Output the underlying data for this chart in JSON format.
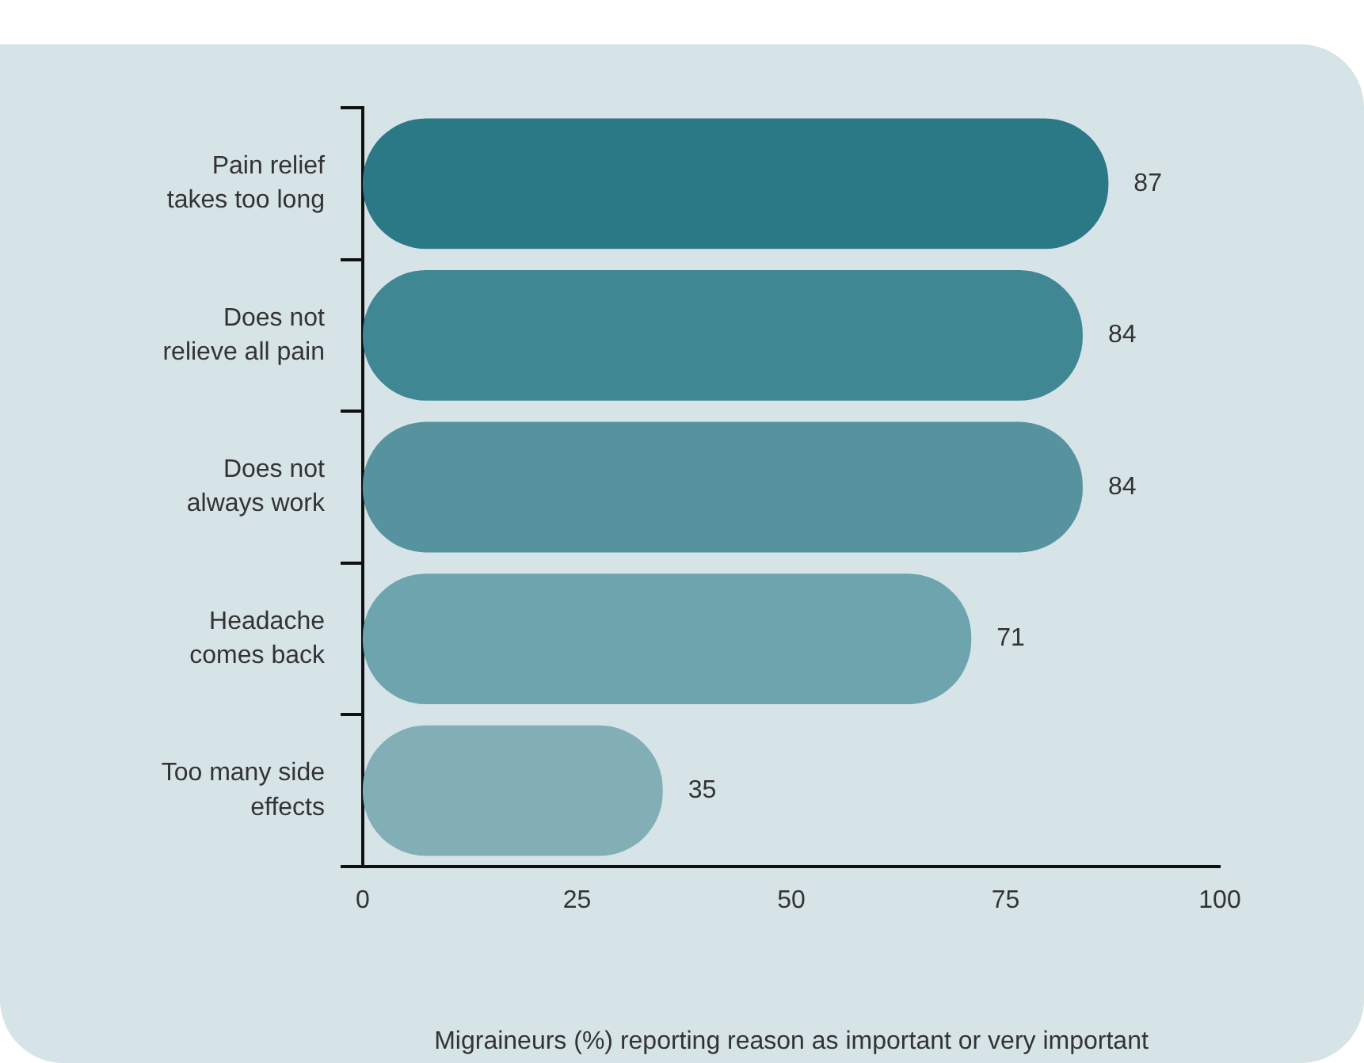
{
  "chart_data": {
    "type": "bar",
    "orientation": "horizontal",
    "xlabel": "Migraineurs (%) reporting reason as important or very important",
    "categories": [
      "Pain relief takes too long",
      "Does not relieve all pain",
      "Does not always work",
      "Headache comes back",
      "Too many side effects"
    ],
    "values": [
      87,
      84,
      84,
      71,
      35
    ],
    "colors": [
      "#2b7986",
      "#3f8793",
      "#56939e",
      "#6ea4ad",
      "#82afb6"
    ],
    "xlim": [
      0,
      100
    ],
    "xticks": [
      0,
      25,
      50,
      75,
      100
    ],
    "grid": false,
    "data_labels": true
  }
}
